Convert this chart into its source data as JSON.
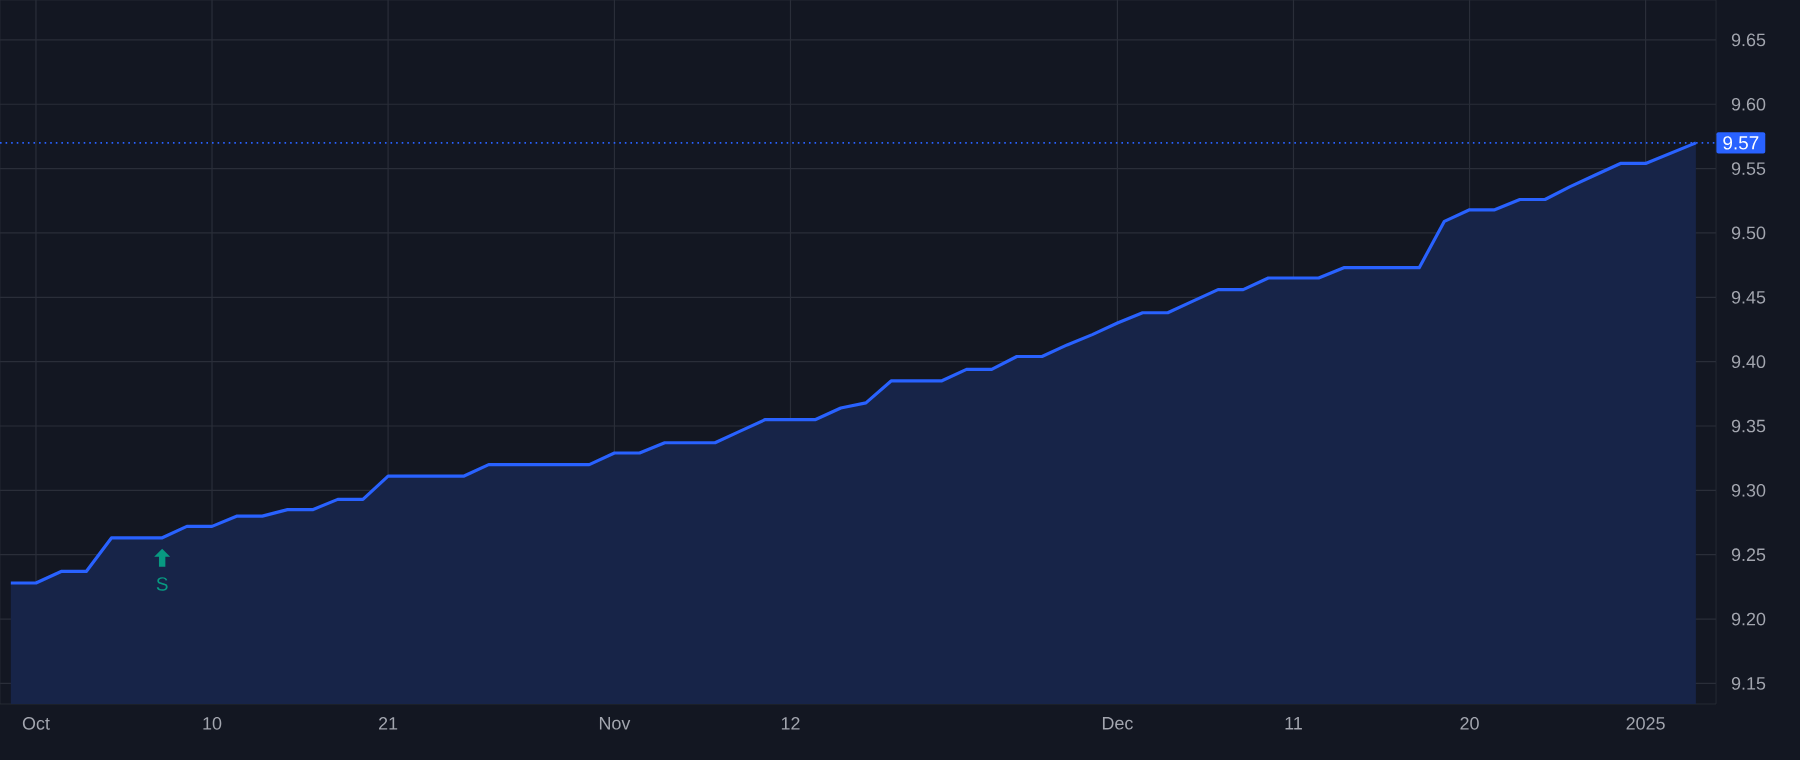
{
  "chart_data": {
    "type": "area",
    "categories": [
      null,
      "Oct",
      null,
      null,
      null,
      null,
      null,
      null,
      "10",
      null,
      null,
      null,
      null,
      null,
      null,
      "21",
      null,
      null,
      null,
      null,
      null,
      null,
      null,
      null,
      "Nov",
      null,
      null,
      null,
      null,
      null,
      null,
      "12",
      null,
      null,
      null,
      null,
      null,
      null,
      null,
      null,
      null,
      null,
      null,
      null,
      "Dec",
      null,
      null,
      null,
      null,
      null,
      null,
      "11",
      null,
      null,
      null,
      null,
      null,
      null,
      "20",
      null,
      null,
      null,
      null,
      null,
      null,
      "2025",
      null,
      null
    ],
    "series": [
      {
        "color": "#2962ff",
        "values": [
          9.228,
          9.228,
          9.237,
          9.237,
          9.263,
          9.263,
          9.263,
          9.272,
          9.272,
          9.28,
          9.28,
          9.285,
          9.285,
          9.293,
          9.293,
          9.311,
          9.311,
          9.311,
          9.311,
          9.32,
          9.32,
          9.32,
          9.32,
          9.32,
          9.329,
          9.329,
          9.337,
          9.337,
          9.337,
          9.346,
          9.355,
          9.355,
          9.355,
          9.364,
          9.368,
          9.385,
          9.385,
          9.385,
          9.394,
          9.394,
          9.404,
          9.404,
          9.413,
          9.421,
          9.43,
          9.438,
          9.438,
          9.447,
          9.456,
          9.456,
          9.465,
          9.465,
          9.465,
          9.473,
          9.473,
          9.473,
          9.473,
          9.509,
          9.518,
          9.518,
          9.526,
          9.526,
          9.536,
          9.545,
          9.554,
          9.554,
          9.562,
          9.57
        ]
      }
    ],
    "ylim": [
      9.134,
      9.681
    ],
    "yticks": [
      9.15,
      {
        "value": 9.2,
        "label": "9.20"
      },
      9.25,
      {
        "value": 9.3,
        "label": "9.30"
      },
      9.35,
      {
        "value": 9.4,
        "label": "9.40"
      },
      9.45,
      {
        "value": 9.5,
        "label": "9.50"
      },
      9.55,
      {
        "value": 9.6,
        "label": "9.60"
      },
      9.65
    ],
    "grid": true,
    "marker": "none",
    "line_style": "solid",
    "ref_lines": [
      {
        "axis": "y",
        "value": 9.57,
        "label": "9.57",
        "color": "#2962ff",
        "line_style": "dotted"
      }
    ],
    "annotations": [
      {
        "text": "S",
        "y": 9.255
      }
    ]
  }
}
